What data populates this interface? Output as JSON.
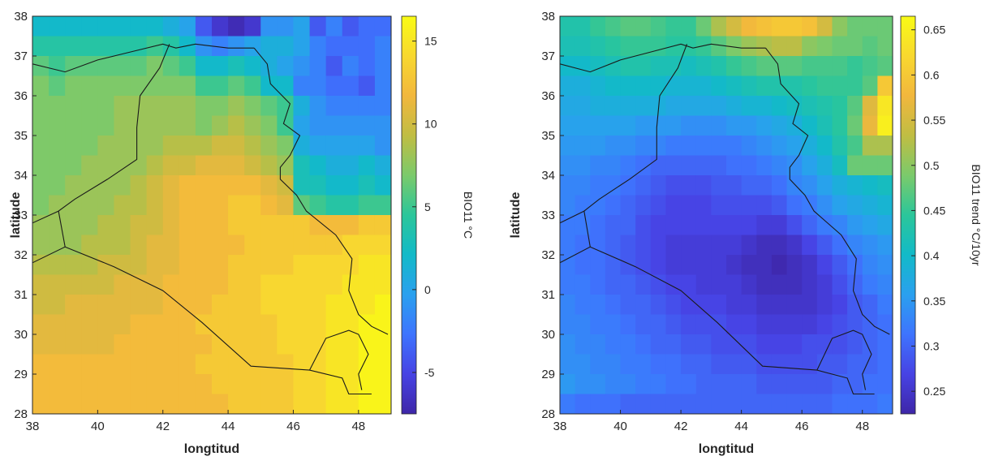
{
  "colormap": [
    "#3e26a8",
    "#4743e4",
    "#3e74fe",
    "#2aa0ef",
    "#12bac8",
    "#2bc69a",
    "#7bca6b",
    "#c0bd43",
    "#f2b73d",
    "#f8d82f",
    "#f9fb15"
  ],
  "panels": [
    {
      "xlabel": "longtitud",
      "ylabel": "latitude",
      "xticks": [
        "38",
        "40",
        "42",
        "44",
        "46",
        "48"
      ],
      "yticks": [
        "28",
        "29",
        "30",
        "31",
        "32",
        "33",
        "34",
        "35",
        "36",
        "37",
        "38"
      ],
      "colorbar_label": "BIO11 °C",
      "colorbar_ticks": [
        "-5",
        "0",
        "5",
        "10",
        "15"
      ]
    },
    {
      "xlabel": "longtitud",
      "ylabel": "latitude",
      "xticks": [
        "38",
        "40",
        "42",
        "44",
        "46",
        "48"
      ],
      "yticks": [
        "28",
        "29",
        "30",
        "31",
        "32",
        "33",
        "34",
        "35",
        "36",
        "37",
        "38"
      ],
      "colorbar_label": "BIO11 trend °C/10yr",
      "colorbar_ticks": [
        "0.25",
        "0.3",
        "0.35",
        "0.4",
        "0.45",
        "0.5",
        "0.55",
        "0.6",
        "0.65"
      ]
    }
  ],
  "chart_data": [
    {
      "type": "heatmap",
      "xlabel": "longtitud",
      "ylabel": "latitude",
      "xlim": [
        38,
        49
      ],
      "ylim": [
        28,
        38
      ],
      "x": [
        38.25,
        38.75,
        39.25,
        39.75,
        40.25,
        40.75,
        41.25,
        41.75,
        42.25,
        42.75,
        43.25,
        43.75,
        44.25,
        44.75,
        45.25,
        45.75,
        46.25,
        46.75,
        47.25,
        47.75,
        48.25,
        48.75
      ],
      "y": [
        37.75,
        37.25,
        36.75,
        36.25,
        35.75,
        35.25,
        34.75,
        34.25,
        33.75,
        33.25,
        32.75,
        32.25,
        31.75,
        31.25,
        30.75,
        30.25,
        29.75,
        29.25,
        28.75,
        28.25
      ],
      "z": [
        [
          2,
          2,
          2,
          2,
          2,
          2,
          2,
          2,
          1,
          0,
          -4,
          -6,
          -7,
          -6,
          -1,
          -1,
          0,
          -4,
          -2,
          -4,
          -3,
          -3
        ],
        [
          4,
          4,
          4,
          4,
          4,
          4,
          4,
          5,
          4,
          2,
          -1,
          -2,
          -1,
          0,
          1,
          1,
          0,
          -2,
          -3,
          -3,
          -3,
          -2
        ],
        [
          6,
          5,
          6,
          6,
          6,
          6,
          6,
          7,
          6,
          5,
          2,
          2,
          3,
          2,
          1,
          0,
          -1,
          -2,
          -4,
          -2,
          -3,
          -2
        ],
        [
          7,
          6,
          7,
          7,
          7,
          7,
          7,
          7,
          7,
          7,
          5,
          5,
          6,
          5,
          2,
          2,
          -2,
          -2,
          -3,
          -3,
          -4,
          -2
        ],
        [
          7,
          7,
          7,
          7,
          7,
          8,
          8,
          8,
          8,
          8,
          7,
          7,
          8,
          7,
          6,
          5,
          1,
          -1,
          -2,
          -2,
          -2,
          -2
        ],
        [
          7,
          7,
          7,
          7,
          7,
          8,
          8,
          8,
          8,
          8,
          7,
          8,
          9,
          8,
          7,
          5,
          0,
          -1,
          -1,
          -1,
          -1,
          -1
        ],
        [
          7,
          7,
          7,
          7,
          8,
          8,
          8,
          8,
          9,
          9,
          9,
          10,
          10,
          9,
          8,
          7,
          1,
          0,
          0,
          0,
          0,
          -1
        ],
        [
          7,
          7,
          7,
          8,
          8,
          8,
          8,
          9,
          10,
          10,
          11,
          11,
          11,
          10,
          9,
          8,
          3,
          2,
          1,
          1,
          2,
          1
        ],
        [
          7,
          7,
          8,
          8,
          8,
          8,
          9,
          10,
          11,
          12,
          12,
          12,
          12,
          12,
          11,
          10,
          3,
          3,
          2,
          2,
          3,
          2
        ],
        [
          7,
          8,
          8,
          8,
          8,
          9,
          9,
          10,
          11,
          12,
          12,
          12,
          13,
          13,
          12,
          11,
          6,
          5,
          4,
          4,
          5,
          5
        ],
        [
          8,
          8,
          8,
          8,
          9,
          9,
          10,
          10,
          11,
          12,
          12,
          12,
          13,
          13,
          13,
          13,
          13,
          12,
          12,
          12,
          13,
          13
        ],
        [
          8,
          8,
          8,
          9,
          9,
          9,
          10,
          11,
          11,
          12,
          12,
          12,
          12,
          13,
          13,
          13,
          13,
          13,
          13,
          14,
          14,
          14
        ],
        [
          9,
          9,
          9,
          9,
          10,
          10,
          10,
          11,
          11,
          12,
          12,
          12,
          13,
          13,
          13,
          13,
          14,
          14,
          14,
          14,
          15,
          15
        ],
        [
          10,
          10,
          10,
          10,
          10,
          11,
          11,
          11,
          12,
          12,
          12,
          12,
          13,
          13,
          14,
          14,
          14,
          14,
          14,
          15,
          15,
          15
        ],
        [
          10,
          10,
          11,
          11,
          11,
          11,
          11,
          11,
          12,
          12,
          12,
          13,
          13,
          13,
          14,
          14,
          14,
          14,
          15,
          15,
          15,
          16
        ],
        [
          11,
          11,
          11,
          11,
          11,
          11,
          12,
          12,
          12,
          12,
          13,
          13,
          13,
          13,
          13,
          14,
          14,
          14,
          15,
          15,
          16,
          16
        ],
        [
          11,
          11,
          11,
          11,
          11,
          12,
          12,
          12,
          12,
          12,
          12,
          13,
          13,
          13,
          13,
          14,
          14,
          14,
          15,
          15,
          16,
          16
        ],
        [
          12,
          12,
          12,
          12,
          12,
          12,
          12,
          12,
          12,
          12,
          13,
          13,
          13,
          13,
          13,
          13,
          14,
          14,
          15,
          15,
          16,
          16
        ],
        [
          12,
          12,
          12,
          12,
          12,
          12,
          12,
          12,
          12,
          12,
          12,
          13,
          13,
          13,
          13,
          13,
          14,
          14,
          15,
          15,
          16,
          16
        ],
        [
          12,
          12,
          12,
          12,
          12,
          12,
          12,
          12,
          12,
          12,
          12,
          12,
          13,
          13,
          13,
          13,
          14,
          14,
          15,
          15,
          16,
          16
        ]
      ],
      "clim": [
        -7.5,
        16.5
      ],
      "colorbar": {
        "label": "BIO11 °C",
        "ticks": [
          -5,
          0,
          5,
          10,
          15
        ]
      }
    },
    {
      "type": "heatmap",
      "xlabel": "longtitud",
      "ylabel": "latitude",
      "xlim": [
        38,
        49
      ],
      "ylim": [
        28,
        38
      ],
      "x": [
        38.25,
        38.75,
        39.25,
        39.75,
        40.25,
        40.75,
        41.25,
        41.75,
        42.25,
        42.75,
        43.25,
        43.75,
        44.25,
        44.75,
        45.25,
        45.75,
        46.25,
        46.75,
        47.25,
        47.75,
        48.25,
        48.75
      ],
      "y": [
        37.75,
        37.25,
        36.75,
        36.25,
        35.75,
        35.25,
        34.75,
        34.25,
        33.75,
        33.25,
        32.75,
        32.25,
        31.75,
        31.25,
        30.75,
        30.25,
        29.75,
        29.25,
        28.75,
        28.25
      ],
      "z": [
        [
          0.43,
          0.43,
          0.45,
          0.46,
          0.47,
          0.47,
          0.46,
          0.45,
          0.45,
          0.48,
          0.52,
          0.55,
          0.58,
          0.59,
          0.6,
          0.6,
          0.59,
          0.55,
          0.5,
          0.48,
          0.48,
          0.48
        ],
        [
          0.42,
          0.42,
          0.43,
          0.44,
          0.45,
          0.45,
          0.45,
          0.44,
          0.44,
          0.45,
          0.47,
          0.49,
          0.51,
          0.52,
          0.53,
          0.53,
          0.5,
          0.49,
          0.48,
          0.48,
          0.47,
          0.48
        ],
        [
          0.4,
          0.4,
          0.41,
          0.42,
          0.43,
          0.43,
          0.42,
          0.42,
          0.41,
          0.42,
          0.43,
          0.45,
          0.46,
          0.47,
          0.47,
          0.47,
          0.46,
          0.46,
          0.46,
          0.45,
          0.46,
          0.47
        ],
        [
          0.38,
          0.38,
          0.39,
          0.4,
          0.4,
          0.4,
          0.4,
          0.39,
          0.39,
          0.39,
          0.4,
          0.41,
          0.42,
          0.43,
          0.43,
          0.43,
          0.44,
          0.45,
          0.45,
          0.45,
          0.47,
          0.6
        ],
        [
          0.37,
          0.37,
          0.38,
          0.38,
          0.38,
          0.38,
          0.38,
          0.37,
          0.37,
          0.37,
          0.37,
          0.38,
          0.39,
          0.39,
          0.4,
          0.41,
          0.42,
          0.43,
          0.44,
          0.47,
          0.56,
          0.64
        ],
        [
          0.36,
          0.36,
          0.36,
          0.36,
          0.36,
          0.35,
          0.35,
          0.35,
          0.34,
          0.34,
          0.34,
          0.35,
          0.35,
          0.36,
          0.37,
          0.38,
          0.4,
          0.42,
          0.44,
          0.48,
          0.57,
          0.65
        ],
        [
          0.35,
          0.35,
          0.35,
          0.34,
          0.34,
          0.33,
          0.33,
          0.32,
          0.32,
          0.32,
          0.32,
          0.32,
          0.33,
          0.34,
          0.35,
          0.36,
          0.38,
          0.4,
          0.43,
          0.46,
          0.52,
          0.52
        ],
        [
          0.34,
          0.34,
          0.33,
          0.33,
          0.32,
          0.31,
          0.3,
          0.3,
          0.3,
          0.3,
          0.3,
          0.31,
          0.31,
          0.32,
          0.33,
          0.34,
          0.36,
          0.38,
          0.41,
          0.48,
          0.48,
          0.48
        ],
        [
          0.33,
          0.33,
          0.32,
          0.32,
          0.31,
          0.3,
          0.29,
          0.28,
          0.28,
          0.28,
          0.29,
          0.29,
          0.3,
          0.3,
          0.31,
          0.33,
          0.34,
          0.36,
          0.38,
          0.39,
          0.4,
          0.41
        ],
        [
          0.33,
          0.32,
          0.32,
          0.31,
          0.3,
          0.29,
          0.28,
          0.27,
          0.27,
          0.27,
          0.28,
          0.28,
          0.28,
          0.28,
          0.29,
          0.31,
          0.32,
          0.34,
          0.36,
          0.37,
          0.38,
          0.39
        ],
        [
          0.32,
          0.32,
          0.31,
          0.3,
          0.3,
          0.28,
          0.27,
          0.27,
          0.27,
          0.27,
          0.27,
          0.27,
          0.27,
          0.26,
          0.26,
          0.28,
          0.3,
          0.32,
          0.33,
          0.35,
          0.36,
          0.37
        ],
        [
          0.32,
          0.31,
          0.31,
          0.3,
          0.29,
          0.28,
          0.27,
          0.26,
          0.26,
          0.26,
          0.26,
          0.26,
          0.25,
          0.24,
          0.24,
          0.25,
          0.27,
          0.29,
          0.31,
          0.33,
          0.34,
          0.35
        ],
        [
          0.32,
          0.31,
          0.31,
          0.3,
          0.29,
          0.28,
          0.27,
          0.26,
          0.26,
          0.26,
          0.26,
          0.25,
          0.24,
          0.24,
          0.23,
          0.24,
          0.25,
          0.27,
          0.29,
          0.31,
          0.33,
          0.34
        ],
        [
          0.32,
          0.32,
          0.31,
          0.3,
          0.3,
          0.29,
          0.28,
          0.27,
          0.27,
          0.26,
          0.26,
          0.26,
          0.25,
          0.24,
          0.24,
          0.24,
          0.25,
          0.26,
          0.28,
          0.3,
          0.32,
          0.33
        ],
        [
          0.33,
          0.32,
          0.32,
          0.31,
          0.3,
          0.3,
          0.29,
          0.28,
          0.27,
          0.27,
          0.27,
          0.26,
          0.26,
          0.25,
          0.25,
          0.25,
          0.25,
          0.26,
          0.27,
          0.29,
          0.3,
          0.32
        ],
        [
          0.33,
          0.33,
          0.32,
          0.32,
          0.31,
          0.3,
          0.3,
          0.29,
          0.28,
          0.28,
          0.28,
          0.27,
          0.27,
          0.26,
          0.26,
          0.26,
          0.26,
          0.27,
          0.28,
          0.29,
          0.3,
          0.31
        ],
        [
          0.34,
          0.33,
          0.33,
          0.32,
          0.32,
          0.31,
          0.3,
          0.3,
          0.29,
          0.29,
          0.28,
          0.28,
          0.28,
          0.27,
          0.27,
          0.27,
          0.28,
          0.28,
          0.28,
          0.29,
          0.3,
          0.31
        ],
        [
          0.34,
          0.34,
          0.33,
          0.33,
          0.32,
          0.32,
          0.31,
          0.31,
          0.3,
          0.3,
          0.29,
          0.29,
          0.29,
          0.28,
          0.28,
          0.28,
          0.28,
          0.29,
          0.29,
          0.3,
          0.3,
          0.31
        ],
        [
          0.35,
          0.34,
          0.34,
          0.33,
          0.33,
          0.32,
          0.32,
          0.31,
          0.31,
          0.3,
          0.3,
          0.3,
          0.3,
          0.29,
          0.29,
          0.29,
          0.29,
          0.29,
          0.3,
          0.3,
          0.31,
          0.31
        ],
        [
          0.32,
          0.31,
          0.31,
          0.31,
          0.3,
          0.3,
          0.3,
          0.3,
          0.3,
          0.3,
          0.3,
          0.3,
          0.3,
          0.3,
          0.3,
          0.3,
          0.3,
          0.3,
          0.31,
          0.31,
          0.31,
          0.32
        ]
      ],
      "clim": [
        0.225,
        0.665
      ],
      "colorbar": {
        "label": "BIO11 trend °C/10yr",
        "ticks": [
          0.25,
          0.3,
          0.35,
          0.4,
          0.45,
          0.5,
          0.55,
          0.6,
          0.65
        ]
      }
    }
  ]
}
